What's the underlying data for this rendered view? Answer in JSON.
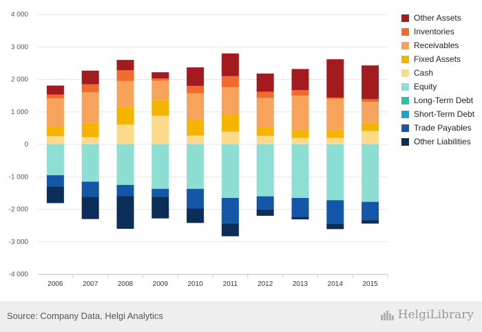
{
  "chart_data": {
    "type": "stacked-bar",
    "categories": [
      "2006",
      "2007",
      "2008",
      "2009",
      "2010",
      "2011",
      "2012",
      "2013",
      "2014",
      "2015"
    ],
    "ylim": [
      -4000,
      4000
    ],
    "yticks": [
      4000,
      3000,
      2000,
      1000,
      0,
      -1000,
      -2000,
      -3000,
      -4000
    ],
    "ytick_labels": [
      "4 000",
      "3 000",
      "2 000",
      "1 000",
      "0",
      "-1 000",
      "-2 000",
      "-3 000",
      "-4 000"
    ],
    "grid": true,
    "legend_position": "right",
    "series": [
      {
        "name": "Other Assets",
        "color": "#a31b1f",
        "side": "positive",
        "values": [
          280,
          420,
          320,
          190,
          570,
          700,
          560,
          650,
          1180,
          1040
        ]
      },
      {
        "name": "Inventories",
        "color": "#f26a2e",
        "side": "positive",
        "values": [
          110,
          250,
          330,
          70,
          230,
          340,
          190,
          170,
          40,
          80
        ]
      },
      {
        "name": "Receivables",
        "color": "#f7a35c",
        "side": "positive",
        "values": [
          880,
          960,
          800,
          600,
          820,
          840,
          920,
          1050,
          950,
          650
        ]
      },
      {
        "name": "Fixed Assets",
        "color": "#f5b400",
        "side": "positive",
        "values": [
          290,
          420,
          540,
          480,
          480,
          530,
          250,
          250,
          250,
          250
        ]
      },
      {
        "name": "Cash",
        "color": "#fcd98b",
        "side": "positive",
        "values": [
          250,
          220,
          610,
          880,
          270,
          390,
          260,
          200,
          200,
          410
        ]
      },
      {
        "name": "Equity",
        "color": "#8ddfd4",
        "side": "negative",
        "values": [
          -950,
          -1150,
          -1250,
          -1370,
          -1370,
          -1650,
          -1600,
          -1650,
          -1720,
          -1770
        ]
      },
      {
        "name": "Long-Term Debt",
        "color": "#2bbfa7",
        "side": "negative",
        "values": [
          0,
          0,
          0,
          0,
          0,
          0,
          0,
          0,
          0,
          0
        ]
      },
      {
        "name": "Short-Term Debt",
        "color": "#1ea4cf",
        "side": "negative",
        "values": [
          0,
          0,
          0,
          0,
          0,
          0,
          0,
          0,
          0,
          0
        ]
      },
      {
        "name": "Trade Payables",
        "color": "#1457a8",
        "side": "negative",
        "values": [
          -350,
          -470,
          -340,
          -250,
          -600,
          -780,
          -410,
          -580,
          -720,
          -560
        ]
      },
      {
        "name": "Other Liabilities",
        "color": "#0c2d57",
        "side": "negative",
        "values": [
          -510,
          -680,
          -1010,
          -660,
          -450,
          -400,
          -190,
          -80,
          -170,
          -110
        ]
      }
    ],
    "legend_order": [
      "Other Assets",
      "Inventories",
      "Receivables",
      "Fixed Assets",
      "Cash",
      "Equity",
      "Long-Term Debt",
      "Short-Term Debt",
      "Trade Payables",
      "Other Liabilities"
    ]
  },
  "footer": {
    "source": "Source: Company Data, Helgi Analytics",
    "brand": "HelgiLibrary"
  }
}
